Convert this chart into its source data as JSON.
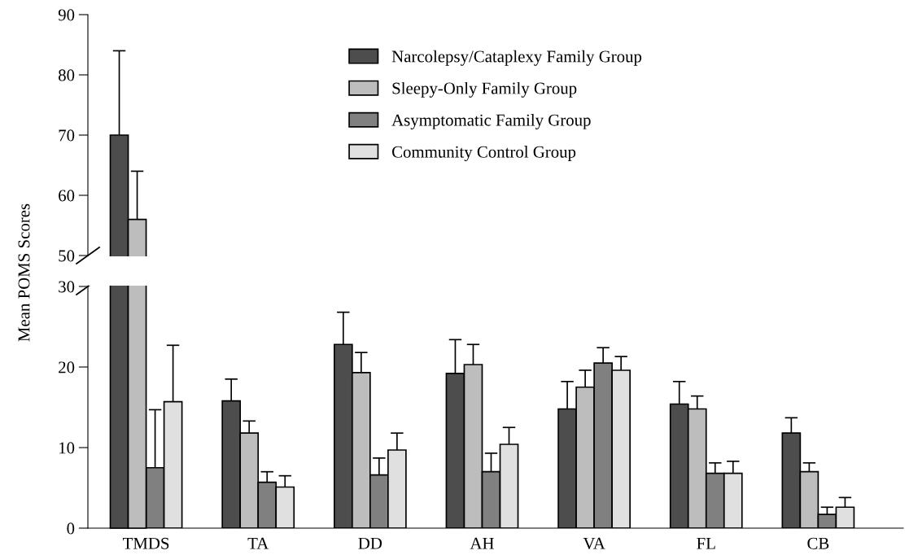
{
  "chart_data": [
    {
      "type": "bar",
      "ylabel": "Mean POMS Scores",
      "categories": [
        null,
        null,
        null,
        null,
        null,
        null,
        null
      ],
      "ylim": [
        50,
        90
      ],
      "yticks": [
        50,
        60,
        70,
        80,
        90
      ],
      "tick_labels": "y",
      "legend": "top",
      "grid": false,
      "series": [
        {
          "name": "Narcolepsy/Cataplexy Family Group",
          "color": "#4d4d4d",
          "values": [
            70,
            null,
            null,
            null,
            null,
            null,
            null
          ],
          "errors": [
            [
              70,
              84
            ],
            null,
            null,
            null,
            null,
            null,
            null
          ]
        },
        {
          "name": "Sleepy-Only Family Group",
          "color": "#bdbdbd",
          "values": [
            56,
            null,
            null,
            null,
            null,
            null,
            null
          ],
          "errors": [
            [
              56,
              64
            ],
            null,
            null,
            null,
            null,
            null,
            null
          ]
        },
        {
          "name": "Asymptomatic Family Group",
          "color": "#808080",
          "values": [
            null,
            null,
            null,
            null,
            null,
            null,
            null
          ]
        },
        {
          "name": "Community Control Group",
          "color": "#e0e0e0",
          "values": [
            null,
            null,
            null,
            null,
            null,
            null,
            null
          ]
        }
      ]
    },
    {
      "type": "bar",
      "categories": [
        "TMDS",
        "TA",
        "DD",
        "AH",
        "VA",
        "FL",
        "CB"
      ],
      "ylim": [
        0,
        30
      ],
      "yticks": [
        0,
        10,
        20,
        30
      ],
      "legend": false,
      "grid": false,
      "series": [
        {
          "color": "#4d4d4d",
          "values": [
            null,
            15.8,
            22.8,
            19.2,
            14.8,
            15.4,
            11.8
          ],
          "errors": [
            null,
            [
              15.8,
              18.5
            ],
            [
              22.8,
              26.8
            ],
            [
              19.2,
              23.4
            ],
            [
              14.8,
              18.2
            ],
            [
              15.4,
              18.2
            ],
            [
              11.8,
              13.7
            ]
          ]
        },
        {
          "color": "#bdbdbd",
          "values": [
            null,
            11.8,
            19.3,
            20.3,
            17.5,
            14.8,
            7.0
          ],
          "errors": [
            null,
            [
              11.8,
              13.3
            ],
            [
              19.3,
              21.8
            ],
            [
              20.3,
              22.8
            ],
            [
              17.5,
              19.6
            ],
            [
              14.8,
              16.4
            ],
            [
              7.0,
              8.1
            ]
          ]
        },
        {
          "color": "#808080",
          "values": [
            7.5,
            5.7,
            6.6,
            7.0,
            20.5,
            6.8,
            1.7
          ],
          "errors": [
            [
              7.5,
              14.7
            ],
            [
              5.7,
              7.0
            ],
            [
              6.6,
              8.7
            ],
            [
              7.0,
              9.3
            ],
            [
              20.5,
              22.4
            ],
            [
              6.8,
              8.1
            ],
            [
              1.7,
              2.6
            ]
          ]
        },
        {
          "color": "#e0e0e0",
          "values": [
            15.7,
            5.1,
            9.7,
            10.4,
            19.6,
            6.8,
            2.6
          ],
          "errors": [
            [
              15.7,
              22.7
            ],
            [
              5.1,
              6.5
            ],
            [
              9.7,
              11.8
            ],
            [
              10.4,
              12.5
            ],
            [
              19.6,
              21.3
            ],
            [
              6.8,
              8.3
            ],
            [
              2.6,
              3.8
            ]
          ]
        }
      ]
    }
  ]
}
